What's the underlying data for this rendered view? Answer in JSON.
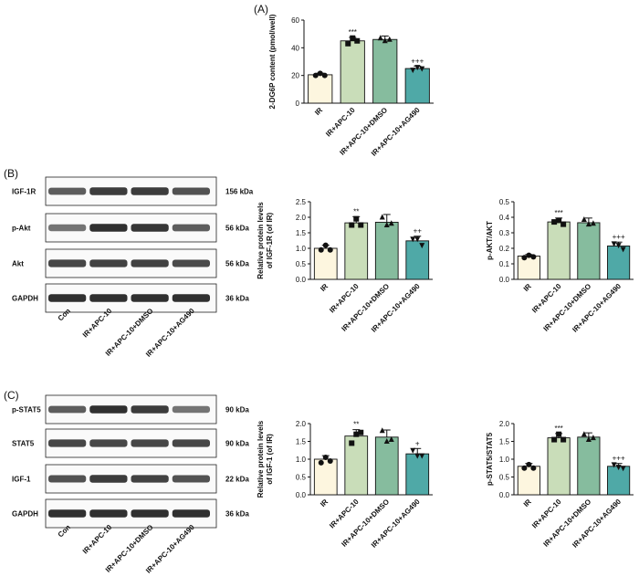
{
  "panels": {
    "A": "(A)",
    "B": "(B)",
    "C": "(C)"
  },
  "colors": {
    "IR": "#fdf6df",
    "IR+APC-10": "#c9ddb9",
    "IR+APC-10+DMSO": "#86bc9e",
    "IR+APC-10+AG490": "#4fa9a7",
    "band": "#1a1a1a"
  },
  "blots": [
    {
      "id": "B",
      "rows": [
        {
          "protein": "IGF-1R",
          "kda": "156 kDa"
        },
        {
          "protein": "p-Akt",
          "kda": "56 kDa"
        },
        {
          "protein": "Akt",
          "kda": "56 kDa"
        },
        {
          "protein": "GAPDH",
          "kda": "36 kDa"
        }
      ],
      "lanes": [
        "Con",
        "IR+APC-10",
        "IR+APC-10+DMSO",
        "IR+APC-10+AG490"
      ],
      "band_intensity": [
        [
          0.7,
          0.85,
          0.85,
          0.75
        ],
        [
          0.6,
          0.9,
          0.88,
          0.7
        ],
        [
          0.8,
          0.82,
          0.82,
          0.78
        ],
        [
          0.9,
          0.9,
          0.9,
          0.9
        ]
      ]
    },
    {
      "id": "C",
      "rows": [
        {
          "protein": "p-STAT5",
          "kda": "90 kDa"
        },
        {
          "protein": "STAT5",
          "kda": "90 kDa"
        },
        {
          "protein": "IGF-1",
          "kda": "22 kDa"
        },
        {
          "protein": "GAPDH",
          "kda": "36 kDa"
        }
      ],
      "lanes": [
        "Con",
        "IR+APC-10",
        "IR+APC-10+DMSO",
        "IR+APC-10+AG490"
      ],
      "band_intensity": [
        [
          0.7,
          0.9,
          0.85,
          0.6
        ],
        [
          0.8,
          0.8,
          0.8,
          0.8
        ],
        [
          0.75,
          0.85,
          0.82,
          0.75
        ],
        [
          0.9,
          0.9,
          0.9,
          0.9
        ]
      ]
    }
  ],
  "chart_data": [
    {
      "id": "A",
      "type": "bar",
      "categories": [
        "IR",
        "IR+APC-10",
        "IR+APC-10+DMSO",
        "IR+APC-10+AG490"
      ],
      "values": [
        20.5,
        45,
        46,
        25
      ],
      "errors": [
        1.2,
        2.5,
        2.5,
        1.8
      ],
      "points": [
        [
          20,
          21.5,
          20
        ],
        [
          43,
          47,
          45
        ],
        [
          47,
          45,
          46
        ],
        [
          24,
          26,
          25
        ]
      ],
      "markers": [
        "circle",
        "square",
        "triangle",
        "triangle-down"
      ],
      "ylabel": "2-DG6P content (pmol/well)",
      "ylim": [
        0,
        60
      ],
      "yticks": [
        0,
        20,
        40,
        60
      ],
      "annotations": [
        "",
        "***",
        "",
        "+++"
      ]
    },
    {
      "id": "B1",
      "type": "bar",
      "categories": [
        "IR",
        "IR+APC-10",
        "IR+APC-10+DMSO",
        "IR+APC-10+AG490"
      ],
      "values": [
        1.0,
        1.82,
        1.84,
        1.24
      ],
      "errors": [
        0.1,
        0.2,
        0.25,
        0.15
      ],
      "points": [
        [
          0.95,
          1.1,
          0.95
        ],
        [
          1.75,
          1.95,
          1.75
        ],
        [
          2.0,
          1.75,
          1.8
        ],
        [
          1.3,
          1.3,
          1.1
        ]
      ],
      "markers": [
        "circle",
        "square",
        "triangle",
        "triangle-down"
      ],
      "ylabel": "Relative protein levels\nof IGF-1R (of IR)",
      "ylim": [
        0,
        2.5
      ],
      "yticks": [
        0.0,
        0.5,
        1.0,
        1.5,
        2.0,
        2.5
      ],
      "annotations": [
        "",
        "**",
        "",
        "++"
      ]
    },
    {
      "id": "B2",
      "type": "bar",
      "categories": [
        "IR",
        "IR+APC-10",
        "IR+APC-10+DMSO",
        "IR+APC-10+AG490"
      ],
      "values": [
        0.15,
        0.37,
        0.365,
        0.215
      ],
      "errors": [
        0.01,
        0.025,
        0.03,
        0.025
      ],
      "points": [
        [
          0.14,
          0.155,
          0.145
        ],
        [
          0.37,
          0.38,
          0.355
        ],
        [
          0.385,
          0.355,
          0.36
        ],
        [
          0.23,
          0.22,
          0.195
        ]
      ],
      "markers": [
        "circle",
        "square",
        "triangle",
        "triangle-down"
      ],
      "ylabel": "p-AKT/AKT",
      "ylim": [
        0,
        0.5
      ],
      "yticks": [
        0.0,
        0.1,
        0.2,
        0.3,
        0.4,
        0.5
      ],
      "annotations": [
        "",
        "***",
        "",
        "+++"
      ]
    },
    {
      "id": "C1",
      "type": "bar",
      "categories": [
        "IR",
        "IR+APC-10",
        "IR+APC-10+DMSO",
        "IR+APC-10+AG490"
      ],
      "values": [
        1.0,
        1.65,
        1.62,
        1.15
      ],
      "errors": [
        0.1,
        0.18,
        0.2,
        0.15
      ],
      "points": [
        [
          0.9,
          1.05,
          0.95
        ],
        [
          1.45,
          1.7,
          1.75
        ],
        [
          1.8,
          1.5,
          1.55
        ],
        [
          1.25,
          1.1,
          1.1
        ]
      ],
      "markers": [
        "circle",
        "square",
        "triangle",
        "triangle-down"
      ],
      "ylabel": "Relative protein levels\nof IGF-1 (of IR)",
      "ylim": [
        0,
        2.0
      ],
      "yticks": [
        0.0,
        0.5,
        1.0,
        1.5,
        2.0
      ],
      "annotations": [
        "",
        "**",
        "",
        "+"
      ]
    },
    {
      "id": "C2",
      "type": "bar",
      "categories": [
        "IR",
        "IR+APC-10",
        "IR+APC-10+DMSO",
        "IR+APC-10+AG490"
      ],
      "values": [
        0.8,
        1.6,
        1.62,
        0.8
      ],
      "errors": [
        0.08,
        0.12,
        0.12,
        0.08
      ],
      "points": [
        [
          0.75,
          0.85,
          0.75
        ],
        [
          1.55,
          1.7,
          1.55
        ],
        [
          1.7,
          1.55,
          1.6
        ],
        [
          0.85,
          0.78,
          0.75
        ]
      ],
      "markers": [
        "circle",
        "square",
        "triangle",
        "triangle-down"
      ],
      "ylabel": "p-STAT5/STAT5",
      "ylim": [
        0,
        2.0
      ],
      "yticks": [
        0.0,
        0.5,
        1.0,
        1.5,
        2.0
      ],
      "annotations": [
        "",
        "***",
        "",
        "+++"
      ]
    }
  ]
}
